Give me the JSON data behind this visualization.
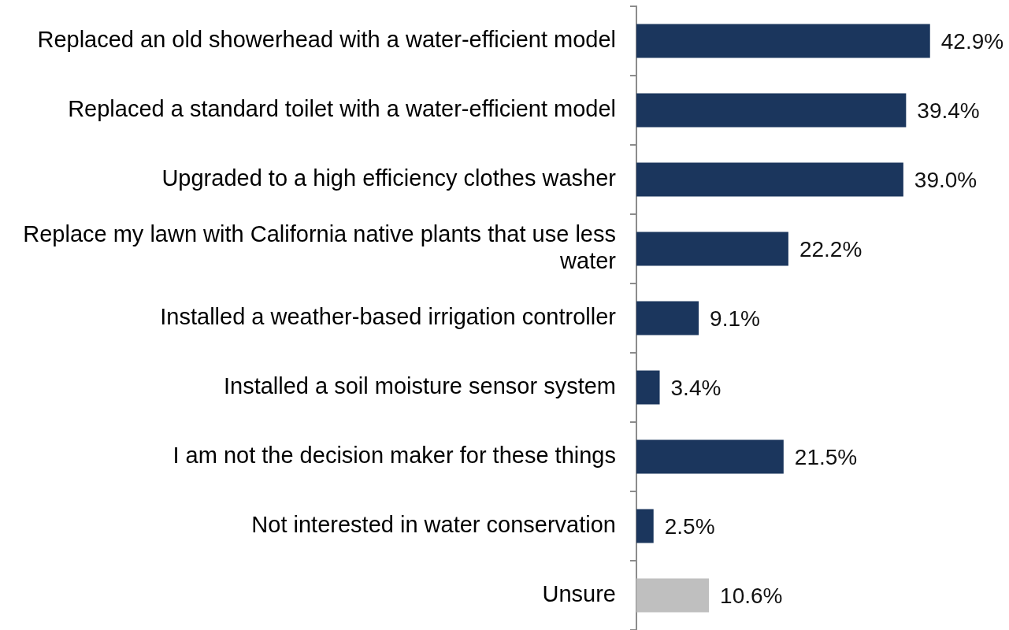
{
  "chart_data": {
    "type": "bar",
    "orientation": "horizontal",
    "categories": [
      "Replaced an old showerhead with a water-efficient model",
      "Replaced a standard toilet with a water-efficient model",
      "Upgraded to a high efficiency clothes washer",
      "Replace my lawn with California native plants that use less water",
      "Installed a weather-based irrigation controller",
      "Installed a soil moisture sensor system",
      "I am not the decision maker for these things",
      "Not interested in water conservation",
      "Unsure"
    ],
    "values": [
      42.9,
      39.4,
      39.0,
      22.2,
      9.1,
      3.4,
      21.5,
      2.5,
      10.6
    ],
    "colors": [
      "#1b365d",
      "#1b365d",
      "#1b365d",
      "#1b365d",
      "#1b365d",
      "#1b365d",
      "#1b365d",
      "#1b365d",
      "#bfbfbf"
    ],
    "value_labels": [
      "42.9%",
      "39.4%",
      "39.0%",
      "22.2%",
      "9.1%",
      "3.4%",
      "21.5%",
      "2.5%",
      "10.6%"
    ],
    "tick_labels": "y"
  }
}
